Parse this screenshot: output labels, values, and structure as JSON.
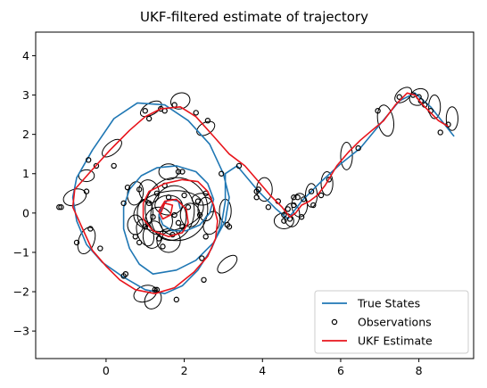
{
  "chart_data": {
    "type": "line",
    "title": "UKF-filtered estimate of trajectory",
    "xlabel": "",
    "ylabel": "",
    "xlim": [
      -1.8,
      9.4
    ],
    "ylim": [
      -3.7,
      4.6
    ],
    "xticks": [
      0,
      2,
      4,
      6,
      8
    ],
    "yticks": [
      -3,
      -2,
      -1,
      0,
      1,
      2,
      3,
      4
    ],
    "grid": false,
    "legend_position": "lower-right",
    "colors": {
      "true_states": "#1f77b4",
      "ukf": "#e8141b",
      "observations": "#000000",
      "ellipses": "#000000"
    },
    "legend": [
      {
        "label": "True States",
        "kind": "line",
        "color": "#1f77b4"
      },
      {
        "label": "Observations",
        "kind": "marker",
        "color": "#000000"
      },
      {
        "label": "UKF Estimate",
        "kind": "line",
        "color": "#e8141b"
      }
    ],
    "series": [
      {
        "name": "True States",
        "points": [
          [
            1.9,
            0.1
          ],
          [
            1.85,
            0.3
          ],
          [
            1.6,
            0.35
          ],
          [
            1.45,
            0.2
          ],
          [
            1.35,
            -0.05
          ],
          [
            1.45,
            -0.3
          ],
          [
            1.7,
            -0.45
          ],
          [
            2.05,
            -0.45
          ],
          [
            2.4,
            -0.3
          ],
          [
            2.65,
            0.0
          ],
          [
            2.75,
            0.35
          ],
          [
            2.6,
            0.75
          ],
          [
            2.3,
            1.05
          ],
          [
            1.8,
            1.2
          ],
          [
            1.3,
            1.15
          ],
          [
            0.9,
            0.95
          ],
          [
            0.6,
            0.6
          ],
          [
            0.45,
            0.15
          ],
          [
            0.45,
            -0.4
          ],
          [
            0.6,
            -0.9
          ],
          [
            0.85,
            -1.3
          ],
          [
            1.2,
            -1.55
          ],
          [
            1.8,
            -1.45
          ],
          [
            2.3,
            -1.2
          ],
          [
            2.75,
            -0.75
          ],
          [
            3.05,
            -0.2
          ],
          [
            3.15,
            0.4
          ],
          [
            3.0,
            1.0
          ],
          [
            2.65,
            1.75
          ],
          [
            2.1,
            2.35
          ],
          [
            1.5,
            2.75
          ],
          [
            0.8,
            2.8
          ],
          [
            0.2,
            2.4
          ],
          [
            -0.35,
            1.6
          ],
          [
            -0.75,
            0.9
          ],
          [
            -0.85,
            0.4
          ],
          [
            -0.75,
            -0.2
          ],
          [
            -0.5,
            -0.8
          ],
          [
            -0.1,
            -1.25
          ],
          [
            0.4,
            -1.6
          ],
          [
            1.0,
            -1.95
          ],
          [
            1.5,
            -2.05
          ],
          [
            1.95,
            -1.85
          ],
          [
            2.35,
            -1.45
          ],
          [
            2.7,
            -0.9
          ],
          [
            2.95,
            -0.3
          ],
          [
            3.05,
            0.3
          ],
          [
            3.05,
            1.0
          ],
          [
            3.35,
            1.2
          ],
          [
            3.9,
            0.55
          ],
          [
            4.35,
            0.1
          ],
          [
            4.65,
            -0.15
          ],
          [
            5.0,
            0.3
          ],
          [
            5.5,
            0.8
          ],
          [
            6.0,
            1.25
          ],
          [
            6.5,
            1.65
          ],
          [
            7.0,
            2.25
          ],
          [
            7.5,
            2.85
          ],
          [
            7.9,
            3.05
          ],
          [
            8.3,
            2.7
          ],
          [
            8.9,
            1.95
          ]
        ]
      },
      {
        "name": "UKF Estimate",
        "points": [
          [
            1.4,
            0.0
          ],
          [
            1.5,
            0.25
          ],
          [
            1.7,
            0.2
          ],
          [
            1.65,
            -0.05
          ],
          [
            1.45,
            -0.15
          ],
          [
            1.35,
            0.05
          ],
          [
            1.5,
            0.3
          ],
          [
            1.8,
            0.35
          ],
          [
            2.05,
            0.1
          ],
          [
            2.1,
            -0.25
          ],
          [
            1.95,
            -0.5
          ],
          [
            1.6,
            -0.6
          ],
          [
            1.2,
            -0.45
          ],
          [
            0.95,
            -0.15
          ],
          [
            0.95,
            0.25
          ],
          [
            1.1,
            0.55
          ],
          [
            1.5,
            0.75
          ],
          [
            1.95,
            0.85
          ],
          [
            2.35,
            0.8
          ],
          [
            2.6,
            0.55
          ],
          [
            2.75,
            0.2
          ],
          [
            2.85,
            -0.2
          ],
          [
            2.8,
            -0.65
          ],
          [
            2.6,
            -1.1
          ],
          [
            2.25,
            -1.5
          ],
          [
            1.75,
            -1.9
          ],
          [
            1.25,
            -2.05
          ],
          [
            0.75,
            -1.95
          ],
          [
            0.35,
            -1.7
          ],
          [
            0.0,
            -1.35
          ],
          [
            -0.35,
            -0.95
          ],
          [
            -0.6,
            -0.4
          ],
          [
            -0.85,
            0.15
          ],
          [
            -0.8,
            0.6
          ],
          [
            -0.4,
            1.05
          ],
          [
            0.1,
            1.6
          ],
          [
            0.6,
            2.1
          ],
          [
            1.0,
            2.45
          ],
          [
            1.4,
            2.65
          ],
          [
            1.9,
            2.7
          ],
          [
            2.3,
            2.45
          ],
          [
            2.75,
            1.95
          ],
          [
            3.15,
            1.5
          ],
          [
            3.55,
            1.2
          ],
          [
            3.9,
            0.8
          ],
          [
            4.2,
            0.45
          ],
          [
            4.5,
            0.15
          ],
          [
            4.7,
            -0.1
          ],
          [
            4.85,
            0.0
          ],
          [
            5.0,
            0.2
          ],
          [
            5.2,
            0.3
          ],
          [
            5.4,
            0.45
          ],
          [
            5.6,
            0.7
          ],
          [
            5.9,
            1.2
          ],
          [
            6.2,
            1.55
          ],
          [
            6.5,
            1.85
          ],
          [
            6.8,
            2.1
          ],
          [
            7.1,
            2.35
          ],
          [
            7.4,
            2.75
          ],
          [
            7.7,
            3.05
          ],
          [
            7.9,
            3.0
          ],
          [
            8.1,
            2.75
          ],
          [
            8.3,
            2.55
          ],
          [
            8.5,
            2.35
          ],
          [
            8.75,
            2.2
          ]
        ]
      }
    ],
    "observations": [
      [
        1.75,
        -0.05
      ],
      [
        1.6,
        0.4
      ],
      [
        1.3,
        0.5
      ],
      [
        1.1,
        0.25
      ],
      [
        2.0,
        0.45
      ],
      [
        2.35,
        0.3
      ],
      [
        2.4,
        -0.05
      ],
      [
        1.95,
        -0.35
      ],
      [
        1.7,
        -0.55
      ],
      [
        1.35,
        -0.65
      ],
      [
        1.0,
        -0.35
      ],
      [
        1.85,
        -0.25
      ],
      [
        2.1,
        0.15
      ],
      [
        1.2,
        -0.1
      ],
      [
        1.45,
        -0.85
      ],
      [
        0.85,
        -0.75
      ],
      [
        0.75,
        -0.6
      ],
      [
        0.45,
        0.25
      ],
      [
        0.55,
        0.65
      ],
      [
        0.85,
        0.6
      ],
      [
        1.5,
        0.7
      ],
      [
        1.85,
        1.05
      ],
      [
        1.95,
        1.05
      ],
      [
        2.55,
        0.5
      ],
      [
        2.95,
        1.0
      ],
      [
        3.1,
        -0.3
      ],
      [
        3.15,
        -0.35
      ],
      [
        2.55,
        -0.6
      ],
      [
        2.45,
        -1.15
      ],
      [
        2.5,
        -1.7
      ],
      [
        1.8,
        -2.2
      ],
      [
        1.25,
        -1.95
      ],
      [
        1.3,
        -1.95
      ],
      [
        0.45,
        -1.6
      ],
      [
        0.5,
        -1.55
      ],
      [
        -0.15,
        -0.9
      ],
      [
        -0.4,
        -0.4
      ],
      [
        -0.75,
        -0.75
      ],
      [
        -0.5,
        0.55
      ],
      [
        -1.15,
        0.15
      ],
      [
        -1.2,
        0.15
      ],
      [
        -0.45,
        1.35
      ],
      [
        -0.25,
        1.2
      ],
      [
        0.2,
        1.2
      ],
      [
        1.0,
        2.6
      ],
      [
        1.1,
        2.4
      ],
      [
        1.4,
        2.65
      ],
      [
        1.5,
        2.6
      ],
      [
        1.75,
        2.75
      ],
      [
        2.3,
        2.55
      ],
      [
        2.6,
        2.35
      ],
      [
        3.4,
        1.2
      ],
      [
        3.85,
        0.55
      ],
      [
        3.9,
        0.6
      ],
      [
        4.15,
        0.15
      ],
      [
        4.4,
        0.3
      ],
      [
        4.55,
        -0.05
      ],
      [
        4.55,
        -0.2
      ],
      [
        4.7,
        -0.15
      ],
      [
        4.8,
        0.2
      ],
      [
        4.9,
        0.4
      ],
      [
        5.05,
        0.35
      ],
      [
        5.25,
        0.55
      ],
      [
        5.3,
        0.2
      ],
      [
        5.5,
        0.45
      ],
      [
        5.7,
        0.85
      ],
      [
        6.45,
        1.65
      ],
      [
        6.95,
        2.6
      ],
      [
        7.5,
        2.95
      ],
      [
        7.85,
        3.0
      ],
      [
        8.05,
        2.85
      ],
      [
        8.0,
        2.95
      ],
      [
        8.15,
        2.75
      ],
      [
        8.3,
        2.6
      ],
      [
        8.55,
        2.05
      ],
      [
        8.75,
        2.25
      ],
      [
        4.8,
        0.4
      ],
      [
        5.0,
        -0.1
      ],
      [
        4.65,
        0.1
      ],
      [
        3.85,
        0.4
      ]
    ],
    "ellipses": [
      [
        1.6,
        0.05,
        0.9,
        0.5,
        -10
      ],
      [
        1.8,
        0.1,
        0.8,
        0.8,
        0
      ],
      [
        1.7,
        0.0,
        0.55,
        0.7,
        10
      ],
      [
        1.7,
        -0.1,
        0.35,
        0.45,
        0
      ],
      [
        1.6,
        0.2,
        0.35,
        0.25,
        0
      ],
      [
        2.15,
        -0.05,
        0.25,
        0.3,
        0
      ],
      [
        1.35,
        -0.2,
        0.35,
        0.35,
        0
      ],
      [
        1.1,
        0.55,
        0.25,
        0.3,
        -20
      ],
      [
        1.0,
        0.0,
        0.2,
        0.35,
        0
      ],
      [
        1.2,
        -0.55,
        0.25,
        0.35,
        10
      ],
      [
        1.6,
        -0.7,
        0.3,
        0.3,
        0
      ],
      [
        1.0,
        -0.5,
        0.2,
        0.35,
        -20
      ],
      [
        0.75,
        0.5,
        0.2,
        0.3,
        10
      ],
      [
        0.75,
        -0.3,
        0.2,
        0.25,
        0
      ],
      [
        1.6,
        1.05,
        0.25,
        0.2,
        0
      ],
      [
        2.45,
        0.35,
        0.25,
        0.15,
        0
      ],
      [
        3.05,
        0.05,
        0.15,
        0.3,
        0
      ],
      [
        3.1,
        -1.3,
        0.3,
        0.15,
        -40
      ],
      [
        2.7,
        -0.25,
        0.2,
        0.3,
        20
      ],
      [
        2.55,
        0.1,
        0.2,
        0.3,
        0
      ],
      [
        1.0,
        -2.05,
        0.3,
        0.2,
        -20
      ],
      [
        1.2,
        -2.2,
        0.2,
        0.25,
        30
      ],
      [
        -0.5,
        -0.7,
        0.2,
        0.35,
        20
      ],
      [
        -0.8,
        0.4,
        0.3,
        0.2,
        -20
      ],
      [
        -0.5,
        0.95,
        0.2,
        0.15,
        0
      ],
      [
        0.15,
        1.65,
        0.3,
        0.15,
        -40
      ],
      [
        1.15,
        2.65,
        0.3,
        0.15,
        -30
      ],
      [
        1.9,
        2.85,
        0.25,
        0.2,
        -20
      ],
      [
        2.55,
        2.15,
        0.25,
        0.15,
        -30
      ],
      [
        4.05,
        0.6,
        0.2,
        0.3,
        0
      ],
      [
        4.55,
        -0.2,
        0.25,
        0.2,
        0
      ],
      [
        4.75,
        -0.05,
        0.2,
        0.3,
        0
      ],
      [
        4.95,
        0.2,
        0.2,
        0.3,
        0
      ],
      [
        5.25,
        0.45,
        0.15,
        0.3,
        0
      ],
      [
        5.65,
        0.75,
        0.15,
        0.3,
        0
      ],
      [
        6.15,
        1.45,
        0.15,
        0.35,
        0
      ],
      [
        7.15,
        2.35,
        0.2,
        0.4,
        -10
      ],
      [
        7.6,
        3.0,
        0.25,
        0.15,
        -40
      ],
      [
        8.0,
        2.95,
        0.25,
        0.2,
        -30
      ],
      [
        8.4,
        2.7,
        0.15,
        0.3,
        0
      ],
      [
        8.85,
        2.4,
        0.15,
        0.3,
        0
      ]
    ]
  }
}
